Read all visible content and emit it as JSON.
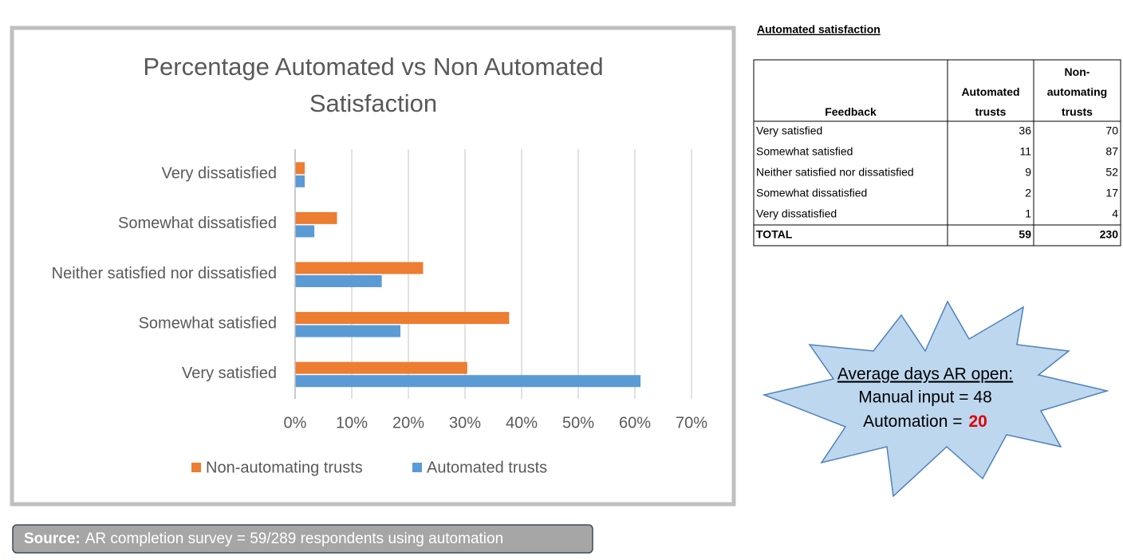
{
  "chart_data": {
    "type": "bar",
    "orientation": "horizontal",
    "title": [
      "Percentage Automated vs Non Automated",
      "Satisfaction"
    ],
    "categories": [
      "Very dissatisfied",
      "Somewhat dissatisfied",
      "Neither satisfied nor dissatisfied",
      "Somewhat satisfied",
      "Very satisfied"
    ],
    "series": [
      {
        "name": "Non-automating trusts",
        "color": "#ed7d31",
        "values": [
          1.7,
          7.4,
          22.6,
          37.8,
          30.4
        ]
      },
      {
        "name": "Automated trusts",
        "color": "#5b9bd5",
        "values": [
          1.7,
          3.4,
          15.3,
          18.6,
          61.0
        ]
      }
    ],
    "xlim": [
      0,
      70
    ],
    "xticks": [
      {
        "value": 0,
        "label": "0%"
      },
      {
        "value": 10,
        "label": "10%"
      },
      {
        "value": 20,
        "label": "20%"
      },
      {
        "value": 30,
        "label": "30%"
      },
      {
        "value": 40,
        "label": "40%"
      },
      {
        "value": 50,
        "label": "50%"
      },
      {
        "value": 60,
        "label": "60%"
      },
      {
        "value": 70,
        "label": "70%"
      }
    ],
    "grid": true,
    "legend": "bottom"
  },
  "table": {
    "title": "Automated satisfaction",
    "header": [
      "Feedback",
      "Automated trusts",
      "Non-automating trusts"
    ],
    "rows": [
      [
        "Very satisfied",
        36,
        70
      ],
      [
        "Somewhat satisfied",
        11,
        87
      ],
      [
        "Neither satisfied nor dissatisfied",
        9,
        52
      ],
      [
        "Somewhat dissatisfied",
        2,
        17
      ],
      [
        "Very dissatisfied",
        1,
        4
      ]
    ],
    "total": [
      "TOTAL",
      59,
      230
    ]
  },
  "callout": {
    "heading": "Average days AR open:",
    "line1": "Manual input = 48",
    "line2": "Automation =",
    "highlight": "20"
  },
  "source": {
    "label": "Source:",
    "text": "AR completion survey = 59/289 respondents using automation"
  }
}
